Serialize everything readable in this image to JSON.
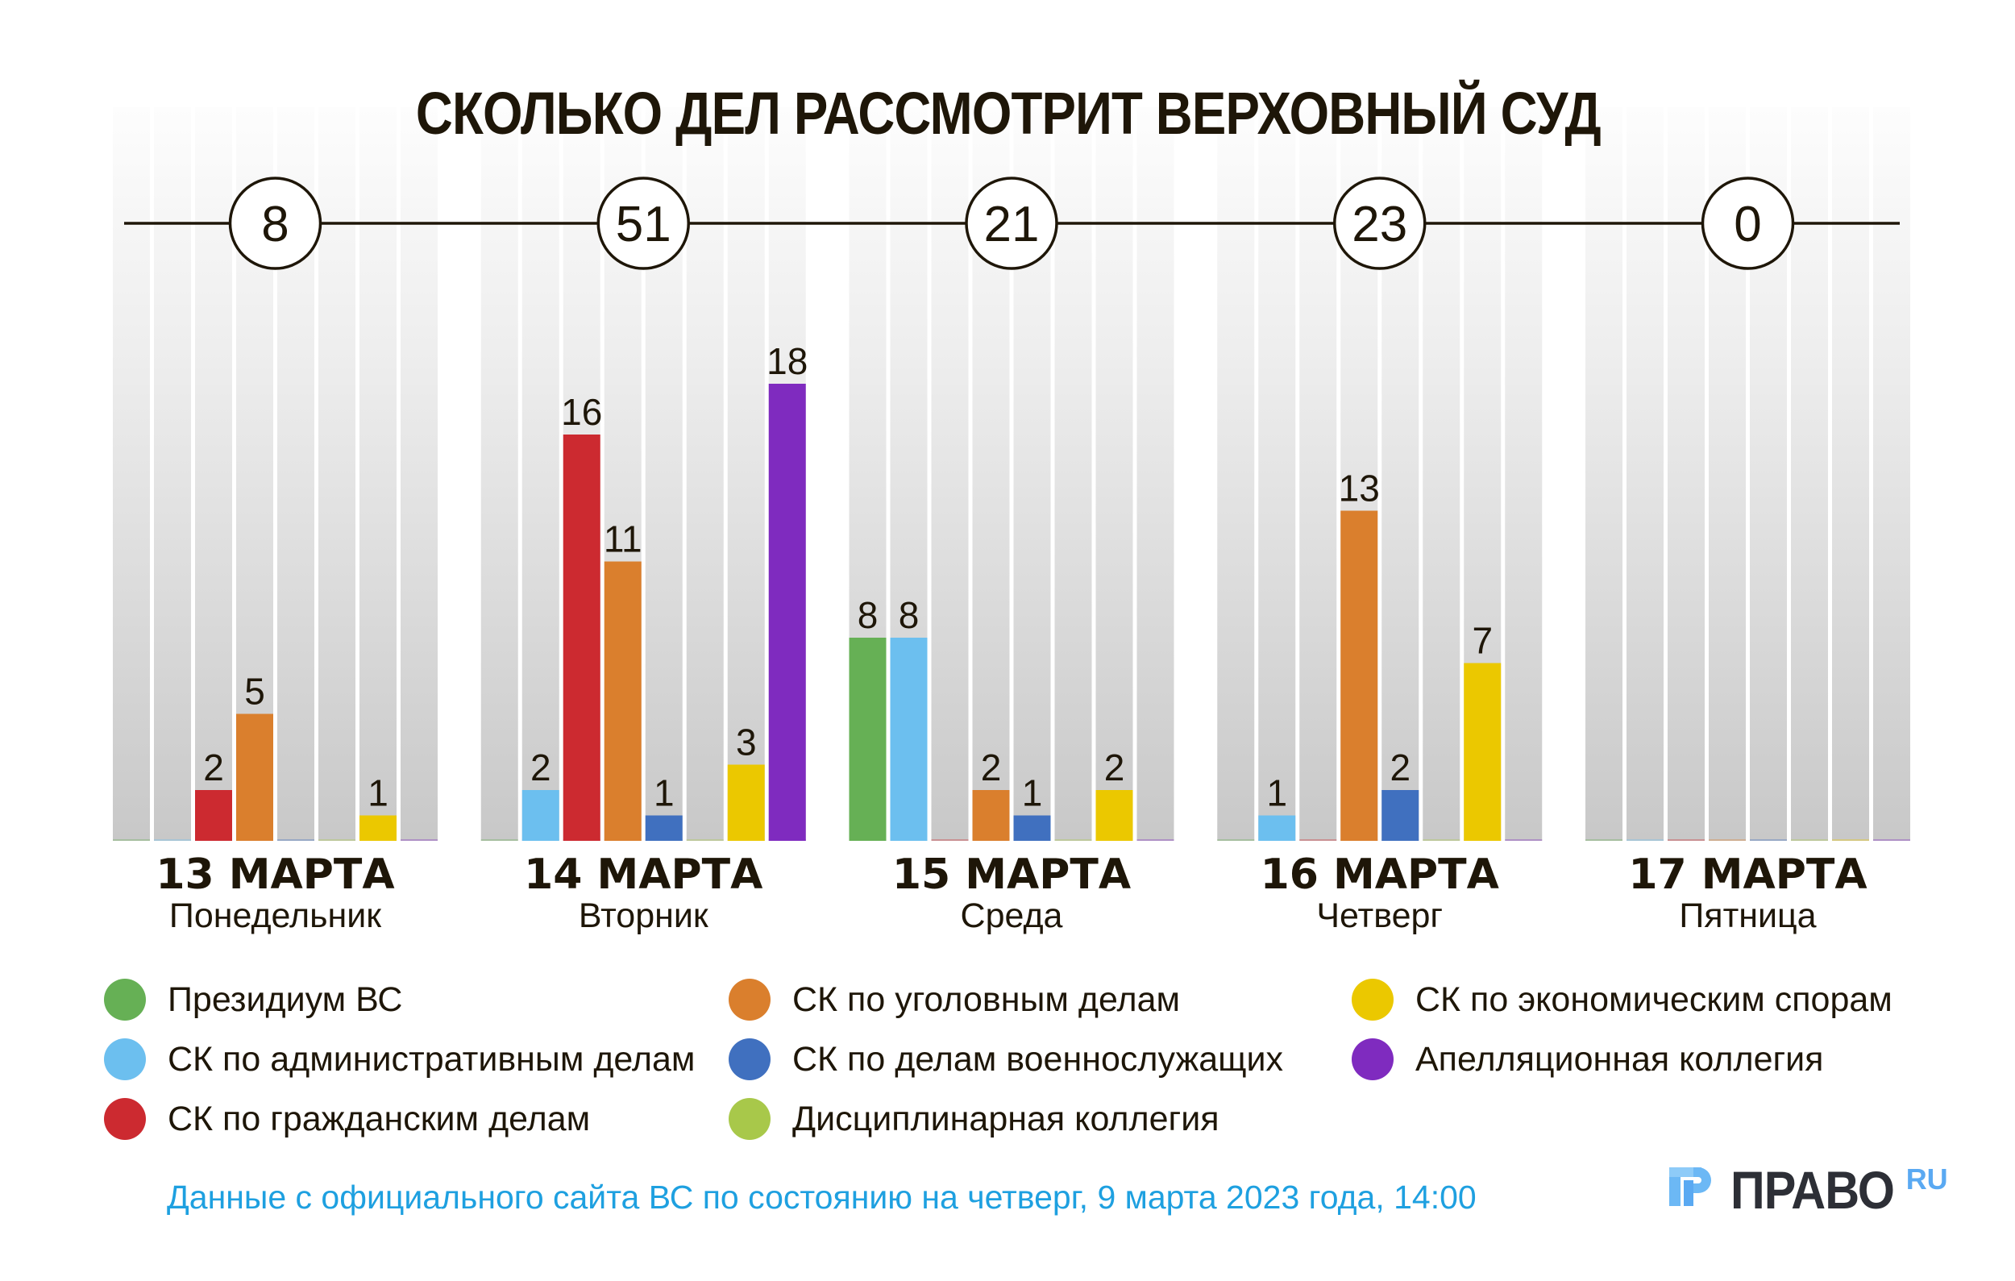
{
  "title": "СКОЛЬКО ДЕЛ РАССМОТРИТ ВЕРХОВНЫЙ СУД",
  "chart_data": {
    "type": "bar",
    "title": "СКОЛЬКО ДЕЛ РАССМОТРИТ ВЕРХОВНЫЙ СУД",
    "xlabel": "",
    "ylabel": "",
    "ylim": [
      0,
      18
    ],
    "grid": false,
    "legend_position": "bottom",
    "categories": [
      "13 МАРТА",
      "14 МАРТА",
      "15 МАРТА",
      "16 МАРТА",
      "17 МАРТА"
    ],
    "weekdays": [
      "Понедельник",
      "Вторник",
      "Среда",
      "Четверг",
      "Пятница"
    ],
    "totals": [
      8,
      51,
      21,
      23,
      0
    ],
    "series": [
      {
        "name": "Президиум ВС",
        "color": "#66b055",
        "values": [
          0,
          0,
          8,
          0,
          0
        ]
      },
      {
        "name": "СК по административным делам",
        "color": "#6cbfef",
        "values": [
          0,
          2,
          8,
          1,
          0
        ]
      },
      {
        "name": "СК по гражданским делам",
        "color": "#cc2a30",
        "values": [
          2,
          16,
          0,
          0,
          0
        ]
      },
      {
        "name": "СК по уголовным делам",
        "color": "#da7f2d",
        "values": [
          5,
          11,
          2,
          13,
          0
        ]
      },
      {
        "name": "СК по делам военнослужащих",
        "color": "#4070bf",
        "values": [
          0,
          1,
          1,
          2,
          0
        ]
      },
      {
        "name": "Дисциплинарная коллегия",
        "color": "#a8c84a",
        "values": [
          0,
          0,
          0,
          0,
          0
        ]
      },
      {
        "name": "СК по экономическим спорам",
        "color": "#ebc800",
        "values": [
          1,
          3,
          2,
          7,
          0
        ]
      },
      {
        "name": "Апелляционная коллегия",
        "color": "#7f2bbf",
        "values": [
          0,
          18,
          0,
          0,
          0
        ]
      }
    ]
  },
  "legend": [
    {
      "label": "Президиум ВС",
      "color": "#66b055"
    },
    {
      "label": "СК по административным делам",
      "color": "#6cbfef"
    },
    {
      "label": "СК по гражданским делам",
      "color": "#cc2a30"
    },
    {
      "label": "СК по уголовным делам",
      "color": "#da7f2d"
    },
    {
      "label": "СК по делам военнослужащих",
      "color": "#4070bf"
    },
    {
      "label": "Дисциплинарная коллегия",
      "color": "#a8c84a"
    },
    {
      "label": "СК по экономическим спорам",
      "color": "#ebc800"
    },
    {
      "label": "Апелляционная коллегия",
      "color": "#7f2bbf"
    }
  ],
  "footer": {
    "source_note": "Данные с официального сайта ВС по состоянию на четверг, 9 марта 2023 года, 14:00"
  },
  "logo": {
    "text": "ПРАВО",
    "suffix": "RU",
    "icon": "pravo-logo-icon"
  },
  "colors": {
    "text": "#1e1608",
    "footer": "#1ea0e0",
    "logo_text": "#2d2f36",
    "logo_accent": "#5aa9f2"
  }
}
